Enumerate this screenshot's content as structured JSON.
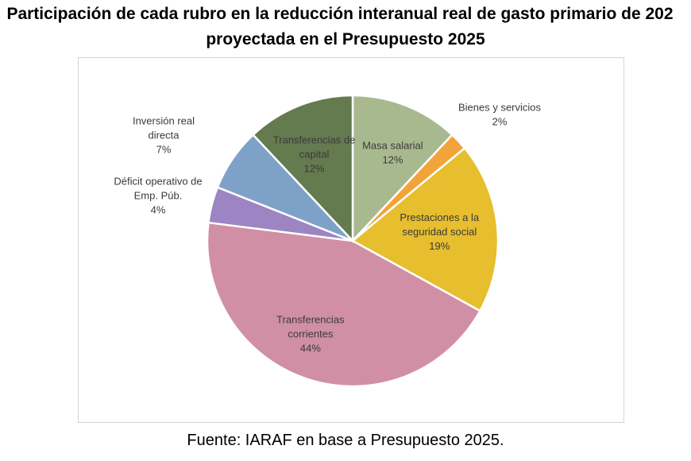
{
  "header": {
    "title_line1": "Participación de cada rubro en la reducción interanual real de gasto primario de 202",
    "title_line2": "proyectada en el Presupuesto 2025"
  },
  "footer": {
    "source": "Fuente: IARAF en base a Presupuesto 2025."
  },
  "chart_data": {
    "type": "pie",
    "title": "Participación de cada rubro en la reducción interanual real de gasto primario de 202 proyectada en el Presupuesto 2025",
    "start_angle_deg": 0,
    "direction": "clockwise",
    "slices": [
      {
        "label": [
          "Masa salarial"
        ],
        "value": 12,
        "value_label": "12%",
        "color": "#a9b98f",
        "label_color": "#3a3a3a",
        "label_pos": "inside"
      },
      {
        "label": [
          "Bienes y servicios"
        ],
        "value": 2,
        "value_label": "2%",
        "color": "#f2a43a",
        "label_color": "#3a3a3a",
        "label_pos": "outside"
      },
      {
        "label": [
          "Prestaciones a la",
          "seguridad social"
        ],
        "value": 19,
        "value_label": "19%",
        "color": "#e6be2e",
        "label_color": "#3a3a3a",
        "label_pos": "inside"
      },
      {
        "label": [
          "Transferencias",
          "corrientes"
        ],
        "value": 44,
        "value_label": "44%",
        "color": "#d08fa5",
        "label_color": "#3a3a3a",
        "label_pos": "inside"
      },
      {
        "label": [
          "Déficit operativo de",
          "Emp. Púb."
        ],
        "value": 4,
        "value_label": "4%",
        "color": "#9d85c3",
        "label_color": "#3a3a3a",
        "label_pos": "outside"
      },
      {
        "label": [
          "Inversión real",
          "directa"
        ],
        "value": 7,
        "value_label": "7%",
        "color": "#7ea1c8",
        "label_color": "#3a3a3a",
        "label_pos": "outside"
      },
      {
        "label": [
          "Transferencias de",
          "capital"
        ],
        "value": 12,
        "value_label": "12%",
        "color": "#647a4f",
        "label_color": "#3a3a3a",
        "label_pos": "inside"
      }
    ],
    "legend": "none"
  }
}
